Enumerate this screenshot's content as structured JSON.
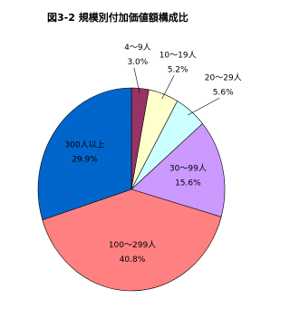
{
  "chart_data": {
    "type": "pie",
    "title": "図3-2 規模別付加価値額構成比",
    "categories": [
      "4～9人",
      "10～19人",
      "20～29人",
      "30～99人",
      "100～299人",
      "300人以上"
    ],
    "values": [
      3.0,
      5.2,
      5.6,
      15.6,
      40.8,
      29.9
    ],
    "value_labels": [
      "3.0%",
      "5.2%",
      "5.6%",
      "15.6%",
      "40.8%",
      "29.9%"
    ],
    "colors": [
      "#993366",
      "#ffffcc",
      "#ccffff",
      "#cc99ff",
      "#ff8080",
      "#0066cc"
    ]
  }
}
